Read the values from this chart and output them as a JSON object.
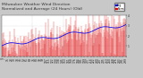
{
  "title": "Milwaukee Weather Wind Direction",
  "subtitle": "Normalized and Average (24 Hours) (Old)",
  "bg_color": "#c8c8c8",
  "plot_bg_color": "#ffffff",
  "ylim": [
    0,
    360
  ],
  "n_points": 300,
  "seed": 42,
  "line_color": "#0000ee",
  "bar_color": "#dd0000",
  "title_fontsize": 3.2,
  "tick_fontsize": 2.2,
  "dpi": 100,
  "figw": 1.6,
  "figh": 0.87
}
